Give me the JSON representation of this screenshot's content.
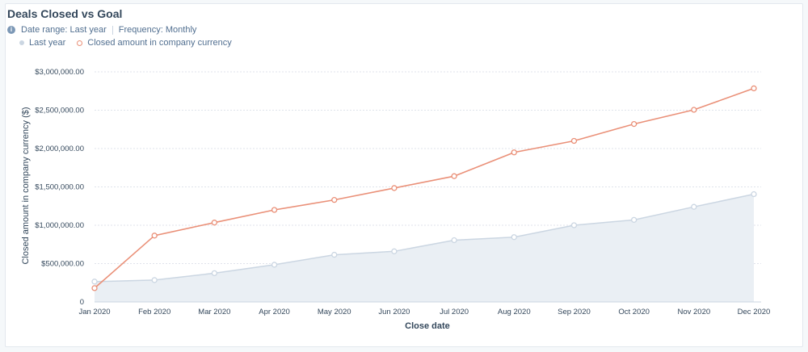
{
  "header": {
    "title": "Deals Closed vs Goal",
    "date_range": "Date range: Last year",
    "frequency": "Frequency: Monthly"
  },
  "colors": {
    "goal_fill": "#eaeff4",
    "goal_line": "#cbd6e2",
    "closed_line": "#ea9078",
    "grid": "#dfe3eb"
  },
  "icons": {
    "info": "info-icon"
  },
  "chart_data": {
    "type": "line",
    "title": "Deals Closed vs Goal",
    "xlabel": "Close date",
    "ylabel": "Closed amount in company currency ($)",
    "categories": [
      "Jan 2020",
      "Feb 2020",
      "Mar 2020",
      "Apr 2020",
      "May 2020",
      "Jun 2020",
      "Jul 2020",
      "Aug 2020",
      "Sep 2020",
      "Oct 2020",
      "Nov 2020",
      "Dec 2020"
    ],
    "ylim": [
      0,
      3000000
    ],
    "yticks": [
      0,
      500000,
      1000000,
      1500000,
      2000000,
      2500000,
      3000000
    ],
    "ytick_labels": [
      "0",
      "$500,000.00",
      "$1,000,000.00",
      "$1,500,000.00",
      "$2,000,000.00",
      "$2,500,000.00",
      "$3,000,000.00"
    ],
    "grid": true,
    "legend_position": "top-left",
    "series": [
      {
        "name": "Last year",
        "style": "area",
        "values": [
          265000,
          285000,
          375000,
          485000,
          615000,
          660000,
          805000,
          845000,
          1000000,
          1070000,
          1240000,
          1405000
        ]
      },
      {
        "name": "Closed amount in company currency",
        "style": "line",
        "values": [
          180000,
          865000,
          1035000,
          1200000,
          1330000,
          1485000,
          1640000,
          1950000,
          2100000,
          2320000,
          2505000,
          2785000
        ]
      }
    ]
  }
}
